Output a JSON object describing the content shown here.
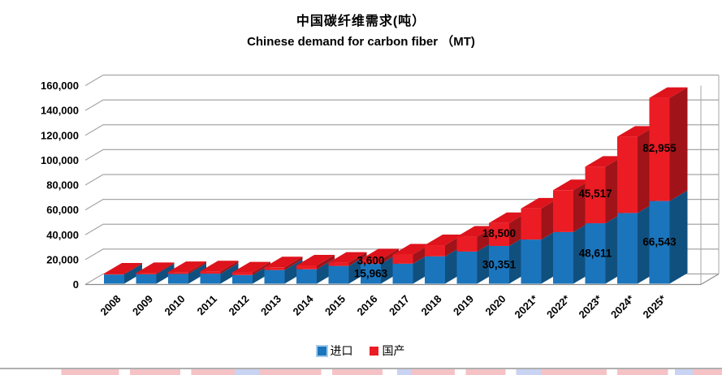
{
  "chart_data": {
    "type": "bar",
    "variant": "3d-stacked-column",
    "title_zh": "中国碳纤维需求(吨）",
    "title_en": "Chinese demand for carbon fiber （MT)",
    "categories": [
      "2008",
      "2009",
      "2010",
      "2011",
      "2012",
      "2013",
      "2014",
      "2015",
      "2016",
      "2017",
      "2018",
      "2019",
      "2020",
      "2021*",
      "2022*",
      "2023*",
      "2024*",
      "2025*"
    ],
    "series": [
      {
        "name": "进口",
        "key": "import",
        "color": "#1B75BC",
        "color_side": "#10507F",
        "color_top": "#3F8CCB",
        "values": [
          7400,
          7600,
          7900,
          8100,
          7000,
          11000,
          11600,
          14300,
          15963,
          16087,
          22000,
          25840,
          30351,
          35511,
          41548,
          48611,
          56875,
          66543
        ]
      },
      {
        "name": "国产",
        "key": "domestic",
        "color": "#EC1C24",
        "color_side": "#A01318",
        "color_top": "#DE131C",
        "values": [
          800,
          1000,
          1500,
          1900,
          2100,
          2200,
          3100,
          2600,
          3600,
          7400,
          9000,
          12000,
          18500,
          24975,
          33716,
          45517,
          61448,
          82955
        ]
      }
    ],
    "data_labels": [
      {
        "category": "2016",
        "series": "国产",
        "text": "3,600"
      },
      {
        "category": "2016",
        "series": "进口",
        "text": "15,963"
      },
      {
        "category": "2020",
        "series": "国产",
        "text": "18,500"
      },
      {
        "category": "2020",
        "series": "进口",
        "text": "30,351"
      },
      {
        "category": "2023*",
        "series": "国产",
        "text": "45,517"
      },
      {
        "category": "2023*",
        "series": "进口",
        "text": "48,611"
      },
      {
        "category": "2025*",
        "series": "国产",
        "text": "82,955"
      },
      {
        "category": "2025*",
        "series": "进口",
        "text": "66,543"
      }
    ],
    "y_axis": {
      "min": 0,
      "max": 160000,
      "step": 20000,
      "tick_labels": [
        "0",
        "20,000",
        "40,000",
        "60,000",
        "80,000",
        "100,000",
        "120,000",
        "140,000",
        "160,000"
      ]
    },
    "grid": true,
    "legend": {
      "position": "bottom",
      "entries": [
        "进口",
        "国产"
      ]
    },
    "colors": {
      "gridline": "#A6A6A6",
      "axis": "#8C8C8C",
      "label_text": "#000000"
    }
  }
}
